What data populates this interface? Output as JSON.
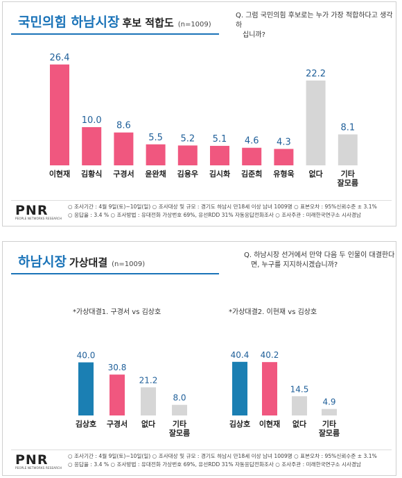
{
  "panel1": {
    "title_main": "국민의힘 하남시장",
    "title_sub": "후보 적합도",
    "n": "(n=1009)",
    "question_l1": "Q. 그럼 국민의힘 후보로는 누가 가장 적합하다고 생각하",
    "question_l2": "십니까?"
  },
  "panel2": {
    "title_main": "하남시장",
    "title_sub": "가상대결",
    "n": "(n=1009)",
    "question_l1": "Q. 하남시장 선거에서 만약 다음 두 인물이 대결한다",
    "question_l2": "면, 누구를 지지하시겠습니까?",
    "label1": "*가상대결1. 구경서 vs 김상호",
    "label2": "*가상대결2. 이현재 vs 김상호"
  },
  "footer": {
    "logo": "PNR",
    "logo_sub": "PEOPLE NETWORKS RESEARCH",
    "line1": "○ 조사기간 : 4월 9일(토)~10일(일)   ○ 조사대상 및 규모 : 경기도 하남시 만18세 이상 남녀 1009명   ○ 표본오차 : 95%신뢰수준 ± 3.1%",
    "line2": "○ 응답율 : 3.4 %   ○ 조사방법 : 유대전화 가상번호 69%, 유선RDD 31% 자동응답전화조사   ○ 조사주관 : 미래한국연구소 시사경남"
  },
  "colors": {
    "pink": "#f0577f",
    "blue": "#1b7fb3",
    "gray": "#d6d6d6",
    "value_text": "#1f5f99",
    "title_blue": "#1a73b8"
  },
  "chart_data": [
    {
      "type": "bar",
      "categories": [
        "이현재",
        "김황식",
        "구경서",
        "윤완채",
        "김용우",
        "김시화",
        "김준희",
        "유형욱",
        "없다",
        "기타\n잘모름"
      ],
      "values": [
        26.4,
        10.0,
        8.6,
        5.5,
        5.2,
        5.1,
        4.6,
        4.3,
        22.2,
        8.1
      ],
      "labels": [
        "26.4",
        "10.0",
        "8.6",
        "5.5",
        "5.2",
        "5.1",
        "4.6",
        "4.3",
        "22.2",
        "8.1"
      ],
      "colors": [
        "pink",
        "pink",
        "pink",
        "pink",
        "pink",
        "pink",
        "pink",
        "pink",
        "gray",
        "gray"
      ],
      "ylim": [
        0,
        30
      ]
    },
    {
      "type": "bar",
      "categories": [
        "김상호",
        "구경서",
        "없다",
        "기타\n잘모름"
      ],
      "values": [
        40.0,
        30.8,
        21.2,
        8.0
      ],
      "labels": [
        "40.0",
        "30.8",
        "21.2",
        "8.0"
      ],
      "colors": [
        "blue",
        "pink",
        "gray",
        "gray"
      ],
      "ylim": [
        0,
        45
      ]
    },
    {
      "type": "bar",
      "categories": [
        "김상호",
        "이현재",
        "없다",
        "기타\n잘모름"
      ],
      "values": [
        40.4,
        40.2,
        14.5,
        4.9
      ],
      "labels": [
        "40.4",
        "40.2",
        "14.5",
        "4.9"
      ],
      "colors": [
        "blue",
        "pink",
        "gray",
        "gray"
      ],
      "ylim": [
        0,
        45
      ]
    }
  ]
}
